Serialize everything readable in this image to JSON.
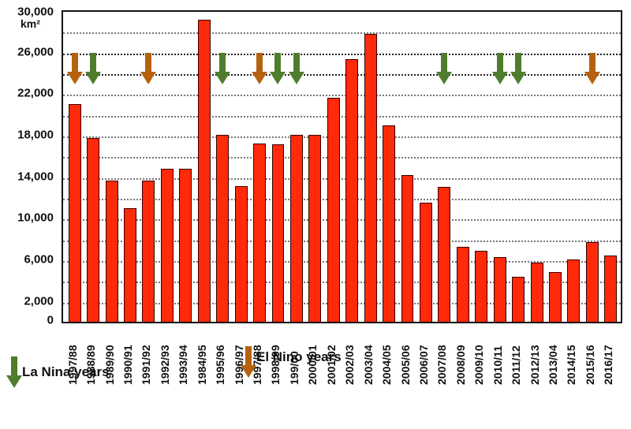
{
  "chart_data": {
    "type": "bar",
    "title": "",
    "xlabel": "",
    "ylabel": "km²",
    "ylim": [
      0,
      30000
    ],
    "yticks": [
      0,
      2000,
      6000,
      10000,
      14000,
      18000,
      22000,
      26000,
      30000
    ],
    "ytick_labels": [
      "0",
      "2,000",
      "6,000",
      "10,000",
      "14,000",
      "18,000",
      "22,000",
      "26,000",
      "30,000"
    ],
    "grid": {
      "y": true,
      "style": "dotted",
      "interval": 2000
    },
    "bar_color": "#ff2a0a",
    "categories": [
      "1997/88",
      "1988/89",
      "1989/90",
      "1990/91",
      "1991/92",
      "1992/93",
      "1993/94",
      "1984/95",
      "1995/96",
      "1996/97",
      "1997/88",
      "1998/99",
      "199/00",
      "2000/01",
      "2001/02",
      "2002/03",
      "2003/04",
      "2004/05",
      "2005/06",
      "2006/07",
      "2007/08",
      "2008/09",
      "2009/10",
      "2010/11",
      "2011/12",
      "2012/13",
      "2013/04",
      "2014/15",
      "2015/16",
      "2016/17"
    ],
    "values": [
      21000,
      17700,
      13600,
      10900,
      13600,
      14700,
      14700,
      29100,
      18000,
      13100,
      17200,
      17100,
      18000,
      18000,
      21600,
      25300,
      27700,
      18900,
      14100,
      11500,
      13000,
      7200,
      6800,
      6200,
      4300,
      5700,
      4800,
      6000,
      7700,
      6400
    ],
    "annotations": {
      "el_nino_indices": [
        0,
        4,
        10,
        28
      ],
      "la_nina_indices": [
        1,
        8,
        11,
        12,
        20,
        23,
        24
      ]
    },
    "legend": [
      {
        "label": "La Nina years",
        "color": "#4e7d2c",
        "marker": "down-arrow"
      },
      {
        "label": "El Nino years",
        "color": "#b5620f",
        "marker": "down-arrow"
      }
    ],
    "legend_position": "bottom"
  },
  "colors": {
    "la_nina": "#4e7d2c",
    "el_nino": "#b5620f",
    "bar": "#ff2a0a"
  }
}
